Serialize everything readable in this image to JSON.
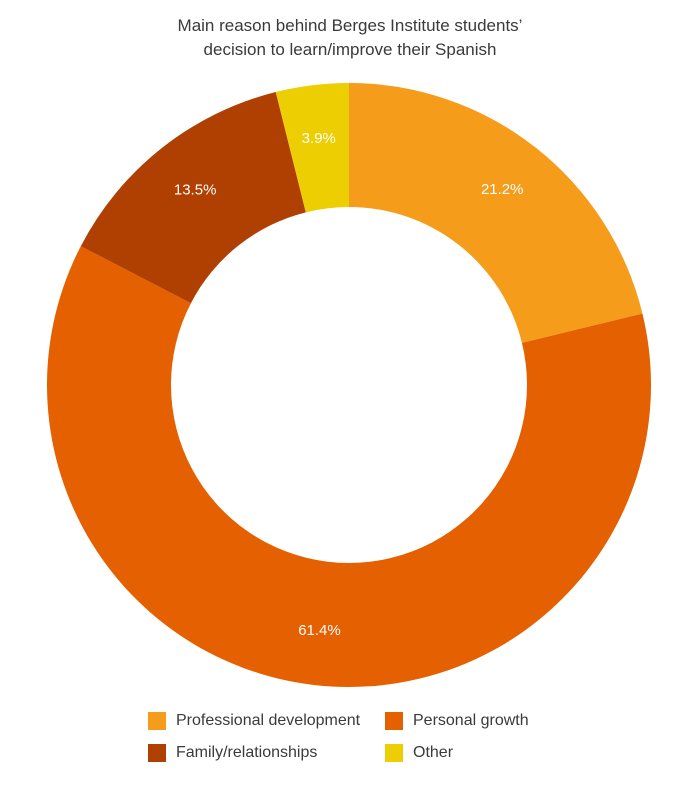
{
  "chart_data": {
    "type": "pie",
    "title": [
      "Main reason behind Berges Institute students’",
      "decision to learn/improve their Spanish"
    ],
    "donut": true,
    "slices": [
      {
        "label": "Professional development",
        "value": 21.2,
        "display": "21.2%",
        "color": "#F69C1B"
      },
      {
        "label": "Personal growth",
        "value": 61.4,
        "display": "61.4%",
        "color": "#E46001"
      },
      {
        "label": "Family/relationships",
        "value": 13.5,
        "display": "13.5%",
        "color": "#B03F02"
      },
      {
        "label": "Other",
        "value": 3.9,
        "display": "3.9%",
        "color": "#ECCE02"
      }
    ],
    "legend": {
      "placement": "bottom",
      "columns": 2
    }
  }
}
